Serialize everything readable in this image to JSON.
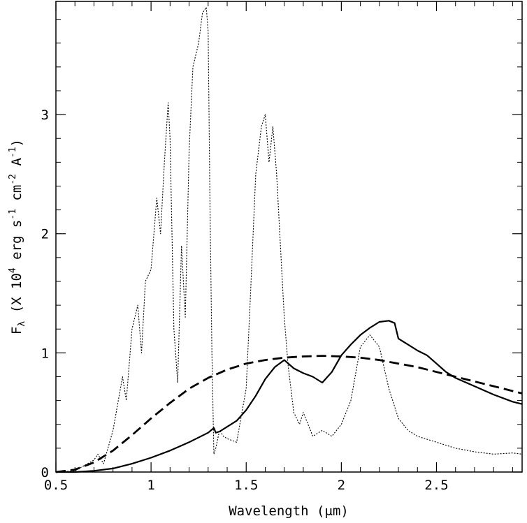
{
  "chart_data": {
    "type": "line",
    "title": "",
    "xlabel": "Wavelength (μm)",
    "ylabel": {
      "prefix": "F",
      "sub": "λ",
      "text1": " (X 10",
      "exp1": "4",
      "text2": " erg s",
      "exp2": "-1",
      "text3": " cm",
      "exp3": "-2",
      "text4": " A",
      "exp4": "-1",
      "text5": ")"
    },
    "xlim": [
      0.5,
      2.95
    ],
    "ylim": [
      0,
      3.95
    ],
    "x_ticks": [
      0.5,
      1,
      1.5,
      2,
      2.5
    ],
    "x_tick_labels": [
      "0.5",
      "1",
      "1.5",
      "2",
      "2.5"
    ],
    "y_ticks": [
      0,
      1,
      2,
      3
    ],
    "y_tick_labels": [
      "0",
      "1",
      "2",
      "3"
    ],
    "grid": false,
    "series": [
      {
        "style": "solid-thick",
        "x": [
          0.5,
          0.6,
          0.7,
          0.8,
          0.9,
          1.0,
          1.1,
          1.2,
          1.3,
          1.33,
          1.34,
          1.36,
          1.4,
          1.45,
          1.5,
          1.55,
          1.6,
          1.65,
          1.7,
          1.75,
          1.8,
          1.85,
          1.9,
          1.95,
          2.0,
          2.05,
          2.1,
          2.15,
          2.2,
          2.25,
          2.28,
          2.3,
          2.35,
          2.4,
          2.45,
          2.5,
          2.55,
          2.6,
          2.7,
          2.8,
          2.9,
          2.95
        ],
        "y": [
          0.0,
          0.0,
          0.01,
          0.03,
          0.07,
          0.12,
          0.18,
          0.25,
          0.33,
          0.37,
          0.33,
          0.34,
          0.38,
          0.43,
          0.52,
          0.64,
          0.78,
          0.88,
          0.94,
          0.87,
          0.83,
          0.8,
          0.75,
          0.84,
          0.98,
          1.07,
          1.15,
          1.21,
          1.26,
          1.27,
          1.25,
          1.12,
          1.07,
          1.02,
          0.98,
          0.91,
          0.84,
          0.79,
          0.72,
          0.65,
          0.59,
          0.57
        ]
      },
      {
        "style": "dashed",
        "x": [
          0.5,
          0.6,
          0.7,
          0.8,
          0.9,
          1.0,
          1.1,
          1.2,
          1.3,
          1.4,
          1.5,
          1.6,
          1.7,
          1.8,
          1.9,
          2.0,
          2.1,
          2.2,
          2.3,
          2.4,
          2.5,
          2.6,
          2.7,
          2.8,
          2.9,
          2.95
        ],
        "y": [
          0.0,
          0.02,
          0.08,
          0.18,
          0.31,
          0.45,
          0.58,
          0.7,
          0.79,
          0.86,
          0.91,
          0.94,
          0.96,
          0.97,
          0.975,
          0.97,
          0.96,
          0.94,
          0.91,
          0.88,
          0.84,
          0.8,
          0.76,
          0.72,
          0.68,
          0.66
        ]
      },
      {
        "style": "dotted",
        "x": [
          0.5,
          0.6,
          0.7,
          0.72,
          0.75,
          0.8,
          0.85,
          0.87,
          0.9,
          0.93,
          0.95,
          0.97,
          1.0,
          1.03,
          1.05,
          1.07,
          1.09,
          1.1,
          1.12,
          1.14,
          1.16,
          1.18,
          1.2,
          1.22,
          1.25,
          1.27,
          1.29,
          1.3,
          1.31,
          1.32,
          1.33,
          1.34,
          1.36,
          1.38,
          1.4,
          1.45,
          1.5,
          1.52,
          1.55,
          1.58,
          1.6,
          1.62,
          1.64,
          1.66,
          1.68,
          1.7,
          1.72,
          1.75,
          1.78,
          1.8,
          1.85,
          1.9,
          1.95,
          2.0,
          2.05,
          2.1,
          2.15,
          2.2,
          2.25,
          2.3,
          2.35,
          2.4,
          2.5,
          2.6,
          2.7,
          2.8,
          2.9,
          2.95
        ],
        "y": [
          0.0,
          0.01,
          0.1,
          0.15,
          0.07,
          0.35,
          0.8,
          0.6,
          1.2,
          1.4,
          1.0,
          1.6,
          1.7,
          2.3,
          2.0,
          2.6,
          3.1,
          2.8,
          1.2,
          0.75,
          1.9,
          1.3,
          2.7,
          3.4,
          3.6,
          3.85,
          3.9,
          3.7,
          2.2,
          1.0,
          0.15,
          0.2,
          0.35,
          0.3,
          0.28,
          0.25,
          0.7,
          1.4,
          2.5,
          2.9,
          3.0,
          2.6,
          2.9,
          2.5,
          1.9,
          1.3,
          0.9,
          0.5,
          0.4,
          0.5,
          0.3,
          0.35,
          0.3,
          0.4,
          0.6,
          1.05,
          1.15,
          1.05,
          0.7,
          0.45,
          0.35,
          0.3,
          0.25,
          0.2,
          0.17,
          0.15,
          0.16,
          0.15
        ]
      }
    ]
  }
}
